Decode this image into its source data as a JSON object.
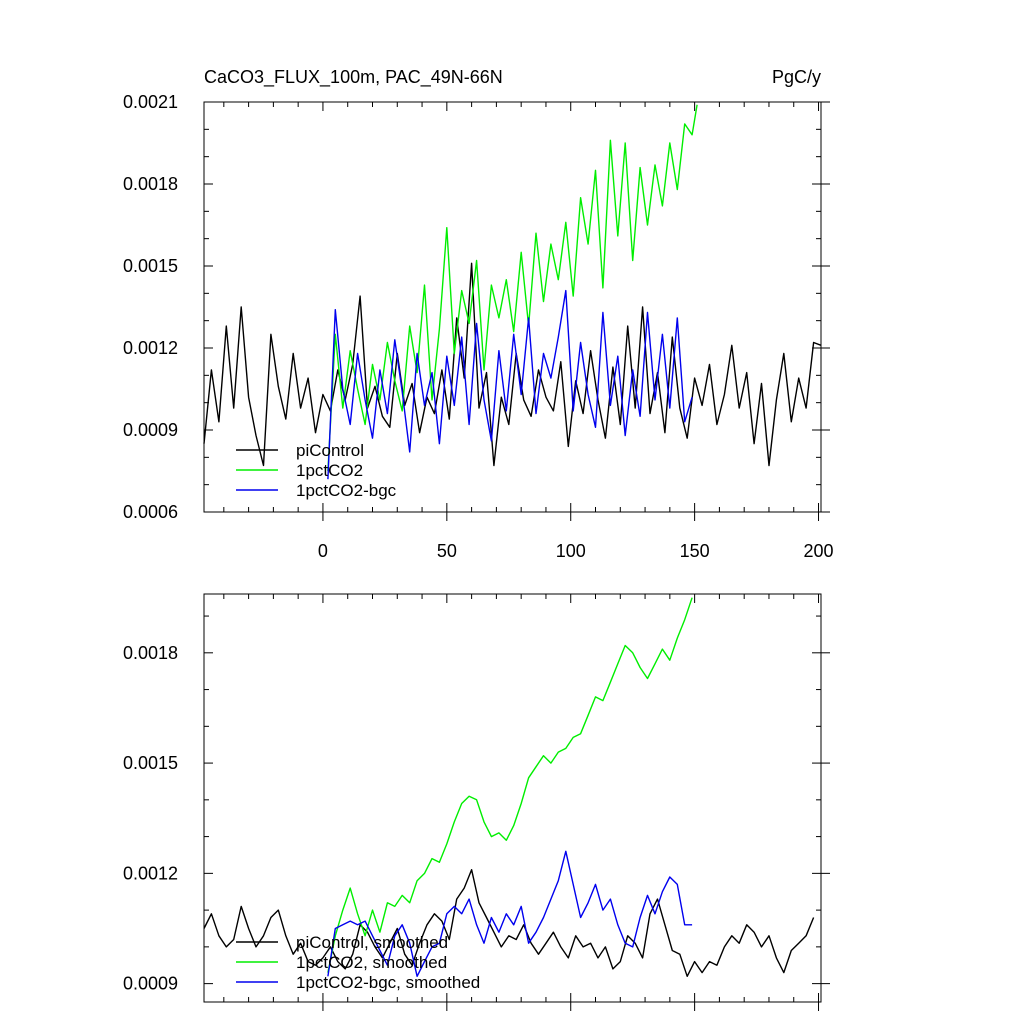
{
  "colors": {
    "piControl": "#000000",
    "1pctCO2": "#00ee00",
    "1pctCO2-bgc": "#0000ee"
  },
  "header": {
    "title_left": "CaCO3_FLUX_100m, PAC_49N-66N",
    "title_right": "PgC/y"
  },
  "chart_data": [
    {
      "type": "line",
      "title": "CaCO3_FLUX_100m, PAC_49N-66N",
      "units": "PgC/y",
      "xlim": [
        -48,
        201
      ],
      "ylim": [
        0.0006,
        0.0021
      ],
      "xticks": [
        0,
        50,
        100,
        150,
        200
      ],
      "xticklabels": [
        "0",
        "50",
        "100",
        "150",
        "200"
      ],
      "yticks": [
        0.0006,
        0.0009,
        0.0012,
        0.0015,
        0.0018,
        0.0021
      ],
      "yticklabels": [
        "0.0006",
        "0.0009",
        "0.0012",
        "0.0015",
        "0.0018",
        "0.0021"
      ],
      "legend_position": "bottom-left",
      "series": [
        {
          "name": "piControl",
          "color": "#000000",
          "x": [
            -48,
            -45,
            -42,
            -39,
            -36,
            -33,
            -30,
            -27,
            -24,
            -21,
            -18,
            -15,
            -12,
            -9,
            -6,
            -3,
            0,
            3,
            6,
            9,
            12,
            15,
            18,
            21,
            24,
            27,
            30,
            33,
            36,
            39,
            42,
            45,
            48,
            51,
            54,
            57,
            60,
            63,
            66,
            69,
            72,
            75,
            78,
            81,
            84,
            87,
            90,
            93,
            96,
            99,
            102,
            105,
            108,
            111,
            114,
            117,
            120,
            123,
            126,
            129,
            132,
            135,
            138,
            141,
            144,
            147,
            150,
            153,
            156,
            159,
            162,
            165,
            168,
            171,
            174,
            177,
            180,
            183,
            186,
            189,
            192,
            195,
            198,
            201
          ],
          "values": [
            0.00085,
            0.00112,
            0.00093,
            0.00128,
            0.00098,
            0.00135,
            0.00102,
            0.00088,
            0.00077,
            0.00125,
            0.00106,
            0.00094,
            0.00118,
            0.00098,
            0.00109,
            0.00089,
            0.00103,
            0.00097,
            0.00112,
            0.00101,
            0.00114,
            0.00139,
            0.00098,
            0.00106,
            0.00095,
            0.00091,
            0.00118,
            0.00099,
            0.00107,
            0.00089,
            0.00102,
            0.00096,
            0.00112,
            0.00094,
            0.00131,
            0.00109,
            0.00151,
            0.00098,
            0.00111,
            0.00077,
            0.00102,
            0.00092,
            0.00118,
            0.00101,
            0.00095,
            0.00112,
            0.00102,
            0.00097,
            0.00115,
            0.00084,
            0.00108,
            0.00096,
            0.00119,
            0.00101,
            0.00087,
            0.00113,
            0.00092,
            0.00128,
            0.00098,
            0.00135,
            0.00096,
            0.00111,
            0.00089,
            0.00124,
            0.00098,
            0.00087,
            0.00109,
            0.00099,
            0.00114,
            0.00092,
            0.00103,
            0.00121,
            0.00098,
            0.00111,
            0.00085,
            0.00107,
            0.00077,
            0.00101,
            0.00118,
            0.00093,
            0.00109,
            0.00098,
            0.00122,
            0.00121
          ]
        },
        {
          "name": "1pctCO2",
          "color": "#00ee00",
          "x": [
            2,
            5,
            8,
            11,
            14,
            17,
            20,
            23,
            26,
            29,
            32,
            35,
            38,
            41,
            44,
            47,
            50,
            53,
            56,
            59,
            62,
            65,
            68,
            71,
            74,
            77,
            80,
            83,
            86,
            89,
            92,
            95,
            98,
            101,
            104,
            107,
            110,
            113,
            116,
            119,
            122,
            125,
            128,
            131,
            134,
            137,
            140,
            143,
            146,
            149,
            151
          ],
          "values": [
            0.00075,
            0.00125,
            0.00098,
            0.00119,
            0.00105,
            0.00092,
            0.00114,
            0.00101,
            0.00122,
            0.00108,
            0.00097,
            0.00128,
            0.00111,
            0.00143,
            0.00101,
            0.00127,
            0.00164,
            0.00118,
            0.00141,
            0.00129,
            0.00152,
            0.00112,
            0.00143,
            0.00131,
            0.00145,
            0.00126,
            0.00155,
            0.00128,
            0.00162,
            0.00137,
            0.00158,
            0.00145,
            0.00166,
            0.00139,
            0.00175,
            0.00158,
            0.00185,
            0.00142,
            0.00196,
            0.00161,
            0.00195,
            0.00152,
            0.00186,
            0.00165,
            0.00187,
            0.00172,
            0.00195,
            0.00178,
            0.00202,
            0.00198,
            0.00209
          ]
        },
        {
          "name": "1pctCO2-bgc",
          "color": "#0000ee",
          "x": [
            2,
            5,
            8,
            11,
            14,
            17,
            20,
            23,
            26,
            29,
            32,
            35,
            38,
            41,
            44,
            47,
            50,
            53,
            56,
            59,
            62,
            65,
            68,
            71,
            74,
            77,
            80,
            83,
            86,
            89,
            92,
            95,
            98,
            101,
            104,
            107,
            110,
            113,
            116,
            119,
            122,
            125,
            128,
            131,
            134,
            137,
            140,
            143,
            146,
            149
          ],
          "values": [
            0.00072,
            0.00134,
            0.00105,
            0.00092,
            0.00118,
            0.00101,
            0.00087,
            0.00112,
            0.00096,
            0.00123,
            0.00104,
            0.00082,
            0.00118,
            0.00099,
            0.00111,
            0.00085,
            0.00117,
            0.00099,
            0.00124,
            0.00092,
            0.00129,
            0.00101,
            0.00086,
            0.00119,
            0.00097,
            0.00125,
            0.00103,
            0.00131,
            0.00096,
            0.00118,
            0.00109,
            0.00124,
            0.00141,
            0.00097,
            0.00122,
            0.00103,
            0.00091,
            0.00133,
            0.00099,
            0.00117,
            0.00088,
            0.00112,
            0.00095,
            0.00133,
            0.00101,
            0.00125,
            0.00098,
            0.00131,
            0.00093,
            0.00102
          ]
        }
      ]
    },
    {
      "type": "line",
      "xlim": [
        -48,
        201
      ],
      "ylim": [
        0.00085,
        0.00196
      ],
      "yticks": [
        0.0009,
        0.0012,
        0.0015,
        0.0018
      ],
      "yticklabels": [
        "0.0009",
        "0.0012",
        "0.0015",
        "0.0018"
      ],
      "legend_position": "bottom-left",
      "series": [
        {
          "name": "piControl, smoothed",
          "color": "#000000",
          "x": [
            -48,
            -45,
            -42,
            -39,
            -36,
            -33,
            -30,
            -27,
            -24,
            -21,
            -18,
            -15,
            -12,
            -9,
            -6,
            -3,
            0,
            3,
            6,
            9,
            12,
            15,
            18,
            21,
            24,
            27,
            30,
            33,
            36,
            39,
            42,
            45,
            48,
            51,
            54,
            57,
            60,
            63,
            66,
            69,
            72,
            75,
            78,
            81,
            84,
            87,
            90,
            93,
            96,
            99,
            102,
            105,
            108,
            111,
            114,
            117,
            120,
            123,
            126,
            129,
            132,
            135,
            138,
            141,
            144,
            147,
            150,
            153,
            156,
            159,
            162,
            165,
            168,
            171,
            174,
            177,
            180,
            183,
            186,
            189,
            192,
            195,
            198
          ],
          "values": [
            0.00105,
            0.00109,
            0.00103,
            0.001,
            0.00102,
            0.00111,
            0.00105,
            0.001,
            0.00103,
            0.00108,
            0.0011,
            0.00103,
            0.00098,
            0.00101,
            0.00096,
            0.00095,
            0.00097,
            0.001,
            0.00096,
            0.00094,
            0.00098,
            0.00106,
            0.00104,
            0.001,
            0.00097,
            0.00101,
            0.00105,
            0.00098,
            0.00095,
            0.00101,
            0.00106,
            0.00109,
            0.00107,
            0.00102,
            0.00113,
            0.00116,
            0.00121,
            0.00112,
            0.00108,
            0.00104,
            0.001,
            0.00103,
            0.00102,
            0.00106,
            0.00101,
            0.00098,
            0.00101,
            0.00104,
            0.001,
            0.00097,
            0.00103,
            0.001,
            0.00101,
            0.00097,
            0.001,
            0.00094,
            0.00096,
            0.00103,
            0.00101,
            0.00097,
            0.00109,
            0.00113,
            0.00106,
            0.00099,
            0.00098,
            0.00092,
            0.00096,
            0.00093,
            0.00096,
            0.00095,
            0.001,
            0.00103,
            0.00101,
            0.00106,
            0.00104,
            0.001,
            0.00103,
            0.00097,
            0.00093,
            0.00099,
            0.00101,
            0.00103,
            0.00108
          ]
        },
        {
          "name": "1pctCO2, smoothed",
          "color": "#00ee00",
          "x": [
            2,
            5,
            8,
            11,
            14,
            17,
            20,
            23,
            26,
            29,
            32,
            35,
            38,
            41,
            44,
            47,
            50,
            53,
            56,
            59,
            62,
            65,
            68,
            71,
            74,
            77,
            80,
            83,
            86,
            89,
            92,
            95,
            98,
            101,
            104,
            107,
            110,
            113,
            116,
            119,
            122,
            125,
            128,
            131,
            134,
            137,
            140,
            143,
            146,
            149
          ],
          "values": [
            0.00093,
            0.00103,
            0.0011,
            0.00116,
            0.00109,
            0.00103,
            0.0011,
            0.00104,
            0.00112,
            0.00111,
            0.00114,
            0.00112,
            0.00118,
            0.0012,
            0.00124,
            0.00123,
            0.00128,
            0.00134,
            0.00139,
            0.00141,
            0.0014,
            0.00134,
            0.0013,
            0.00131,
            0.00129,
            0.00133,
            0.00139,
            0.00146,
            0.00149,
            0.00152,
            0.0015,
            0.00153,
            0.00154,
            0.00157,
            0.00158,
            0.00163,
            0.00168,
            0.00167,
            0.00172,
            0.00177,
            0.00182,
            0.0018,
            0.00176,
            0.00173,
            0.00177,
            0.00181,
            0.00178,
            0.00184,
            0.00189,
            0.00195
          ]
        },
        {
          "name": "1pctCO2-bgc, smoothed",
          "color": "#0000ee",
          "x": [
            2,
            5,
            8,
            11,
            14,
            17,
            20,
            23,
            26,
            29,
            32,
            35,
            38,
            41,
            44,
            47,
            50,
            53,
            56,
            59,
            62,
            65,
            68,
            71,
            74,
            77,
            80,
            83,
            86,
            89,
            92,
            95,
            98,
            101,
            104,
            107,
            110,
            113,
            116,
            119,
            122,
            125,
            128,
            131,
            134,
            137,
            140,
            143,
            146,
            149
          ],
          "values": [
            0.00092,
            0.00105,
            0.00106,
            0.00107,
            0.00106,
            0.00107,
            0.00103,
            0.00099,
            0.00095,
            0.00103,
            0.00106,
            0.00101,
            0.00092,
            0.00096,
            0.001,
            0.00101,
            0.00109,
            0.00111,
            0.00109,
            0.00113,
            0.00106,
            0.00101,
            0.00108,
            0.00104,
            0.00109,
            0.00106,
            0.00111,
            0.00101,
            0.00104,
            0.00108,
            0.00113,
            0.00118,
            0.00126,
            0.00117,
            0.00108,
            0.00112,
            0.00117,
            0.0011,
            0.00113,
            0.00106,
            0.00101,
            0.001,
            0.00108,
            0.00114,
            0.00109,
            0.00115,
            0.00119,
            0.00117,
            0.00106,
            0.00106
          ]
        }
      ]
    }
  ]
}
